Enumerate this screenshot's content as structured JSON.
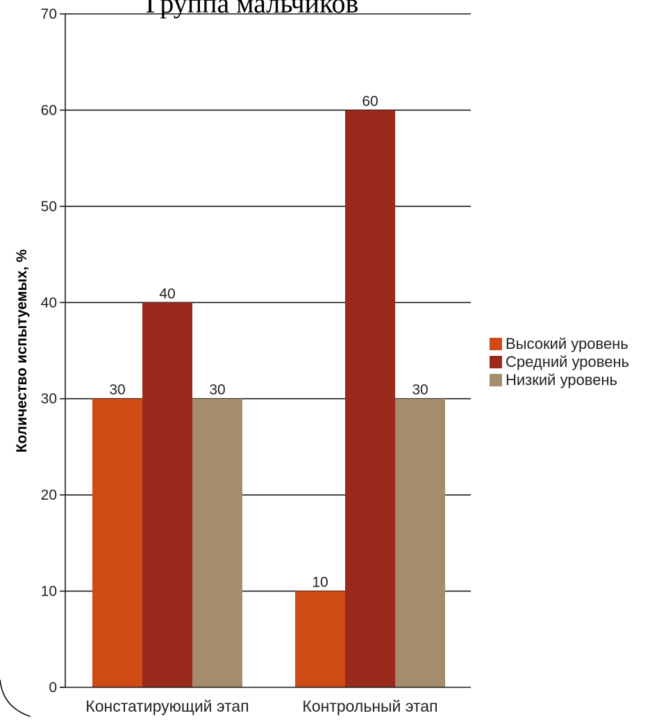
{
  "chart_data": {
    "type": "bar",
    "title": "Группа мальчиков",
    "ylabel": "Количество испытуемых, %",
    "xlabel": "",
    "ylim": [
      0,
      70
    ],
    "yticks": [
      0,
      10,
      20,
      30,
      40,
      50,
      60,
      70
    ],
    "grid": true,
    "legend_position": "right",
    "categories": [
      "Констатирующий этап",
      "Контрольный этап"
    ],
    "series": [
      {
        "name": "Высокий уровень",
        "values": [
          30,
          10
        ],
        "color": "#d04a16"
      },
      {
        "name": "Средний уровень",
        "values": [
          40,
          60
        ],
        "color": "#9a2a1c"
      },
      {
        "name": "Низкий уровень",
        "values": [
          30,
          30
        ],
        "color": "#a58c6c"
      }
    ],
    "data_labels": true
  }
}
